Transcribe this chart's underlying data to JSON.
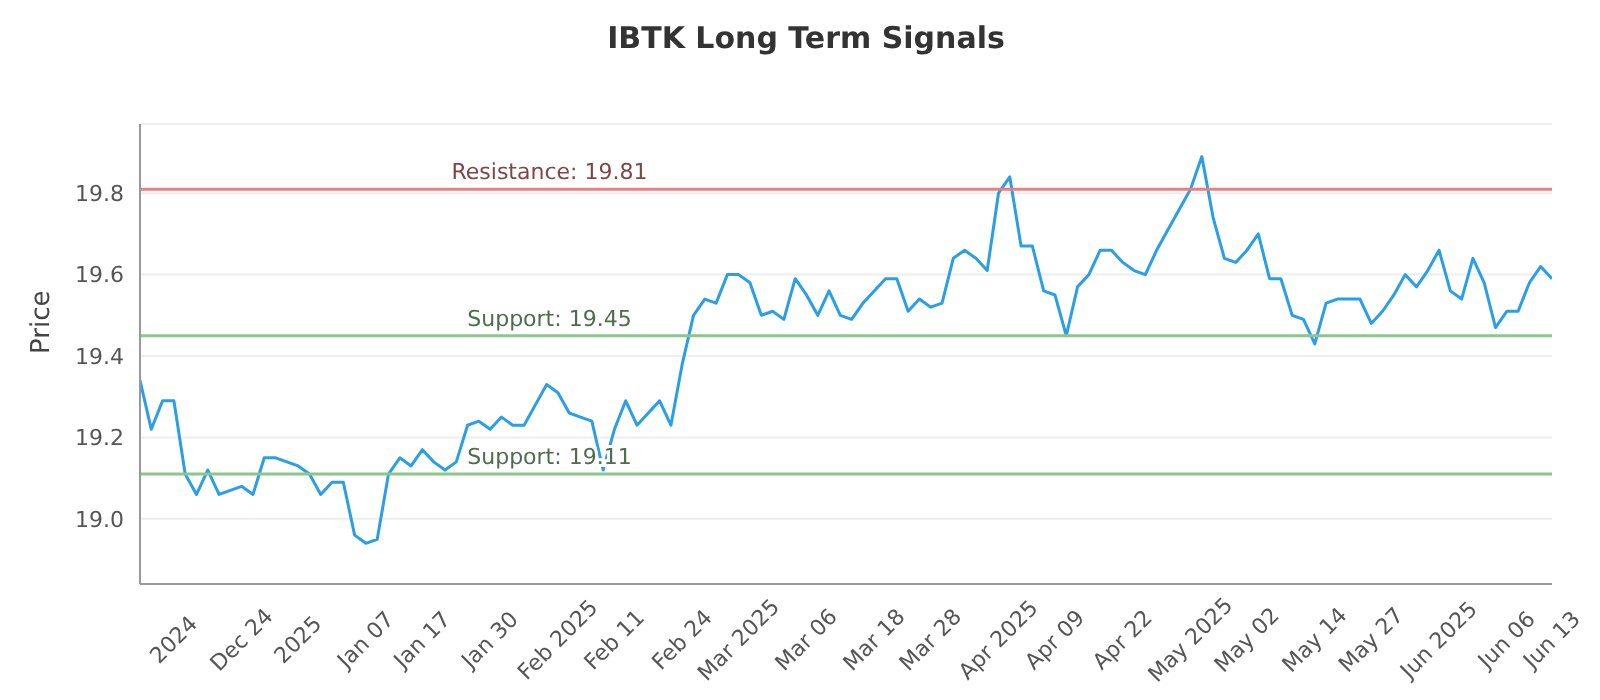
{
  "chart_data": {
    "type": "line",
    "title": "IBTK Long Term Signals",
    "ylabel": "Price",
    "categories": [
      null,
      null,
      null,
      "2024",
      null,
      null,
      null,
      null,
      null,
      "Dec 24",
      null,
      null,
      null,
      null,
      "2025",
      null,
      null,
      null,
      null,
      null,
      "Jan 07",
      null,
      null,
      null,
      null,
      "Jan 17",
      null,
      null,
      null,
      null,
      null,
      "Jan 30",
      null,
      null,
      null,
      null,
      null,
      "Feb 2025",
      null,
      null,
      null,
      null,
      "Feb 11",
      null,
      null,
      null,
      null,
      null,
      "Feb 24",
      null,
      null,
      null,
      null,
      "Mar 2025",
      null,
      null,
      null,
      null,
      null,
      "Mar 06",
      null,
      null,
      null,
      null,
      null,
      "Mar 18",
      null,
      null,
      null,
      null,
      "Mar 28",
      null,
      null,
      null,
      null,
      null,
      "Apr 2025",
      null,
      null,
      null,
      null,
      "Apr 09",
      null,
      null,
      null,
      null,
      null,
      "Apr 22",
      null,
      null,
      null,
      null,
      null,
      "May 2025",
      null,
      null,
      null,
      null,
      "May 02",
      null,
      null,
      null,
      null,
      null,
      "May 14",
      null,
      null,
      null,
      null,
      "May 27",
      null,
      null,
      null,
      null,
      null,
      "Jun 2025",
      null,
      null,
      null,
      null,
      null,
      "Jun 06",
      null,
      null,
      null,
      "Jun 13"
    ],
    "series": [
      {
        "color": "#2b9ee8",
        "values": [
          19.34,
          19.22,
          19.29,
          19.29,
          19.11,
          19.06,
          19.12,
          19.06,
          19.07,
          19.08,
          19.06,
          19.15,
          19.15,
          19.14,
          19.13,
          19.11,
          19.06,
          19.09,
          19.09,
          18.96,
          18.94,
          18.95,
          19.11,
          19.15,
          19.13,
          19.17,
          19.14,
          19.12,
          19.14,
          19.23,
          19.24,
          19.22,
          19.25,
          19.23,
          19.23,
          19.28,
          19.33,
          19.31,
          19.26,
          19.25,
          19.24,
          19.12,
          19.22,
          19.29,
          19.23,
          19.26,
          19.29,
          19.23,
          19.38,
          19.5,
          19.54,
          19.53,
          19.6,
          19.6,
          19.58,
          19.5,
          19.51,
          19.49,
          19.59,
          19.55,
          19.5,
          19.56,
          19.5,
          19.49,
          19.53,
          19.56,
          19.59,
          19.59,
          19.51,
          19.54,
          19.52,
          19.53,
          19.64,
          19.66,
          19.64,
          19.61,
          19.8,
          19.84,
          19.67,
          19.67,
          19.56,
          19.55,
          19.45,
          19.57,
          19.6,
          19.66,
          19.66,
          19.63,
          19.61,
          19.6,
          19.66,
          19.71,
          19.76,
          19.81,
          19.89,
          19.74,
          19.64,
          19.63,
          19.66,
          19.7,
          19.59,
          19.59,
          19.5,
          19.49,
          19.43,
          19.53,
          19.54,
          19.54,
          19.54,
          19.48,
          19.51,
          19.55,
          19.6,
          19.57,
          19.61,
          19.66,
          19.56,
          19.54,
          19.64,
          19.58,
          19.47,
          19.51,
          19.51,
          19.58,
          19.62,
          19.59
        ]
      }
    ],
    "ylim": [
      18.84,
      19.97
    ],
    "yticks": [
      {
        "value": 19,
        "label": "19.0"
      },
      {
        "value": 19.2,
        "label": "19.2"
      },
      {
        "value": 19.4,
        "label": "19.4"
      },
      {
        "value": 19.6,
        "label": "19.6"
      },
      {
        "value": 19.8,
        "label": "19.8"
      }
    ],
    "grid": "y",
    "marker": "none",
    "line_style": "solid",
    "legend": false,
    "ref_lines": [
      {
        "axis": "y",
        "value": 19.81,
        "label": "Resistance: 19.81",
        "color": "#e88080"
      },
      {
        "axis": "y",
        "value": 19.45,
        "label": "Support: 19.45",
        "color": "#8cc68c"
      },
      {
        "axis": "y",
        "value": 19.11,
        "label": "Support: 19.11",
        "color": "#8cc68c"
      }
    ]
  }
}
